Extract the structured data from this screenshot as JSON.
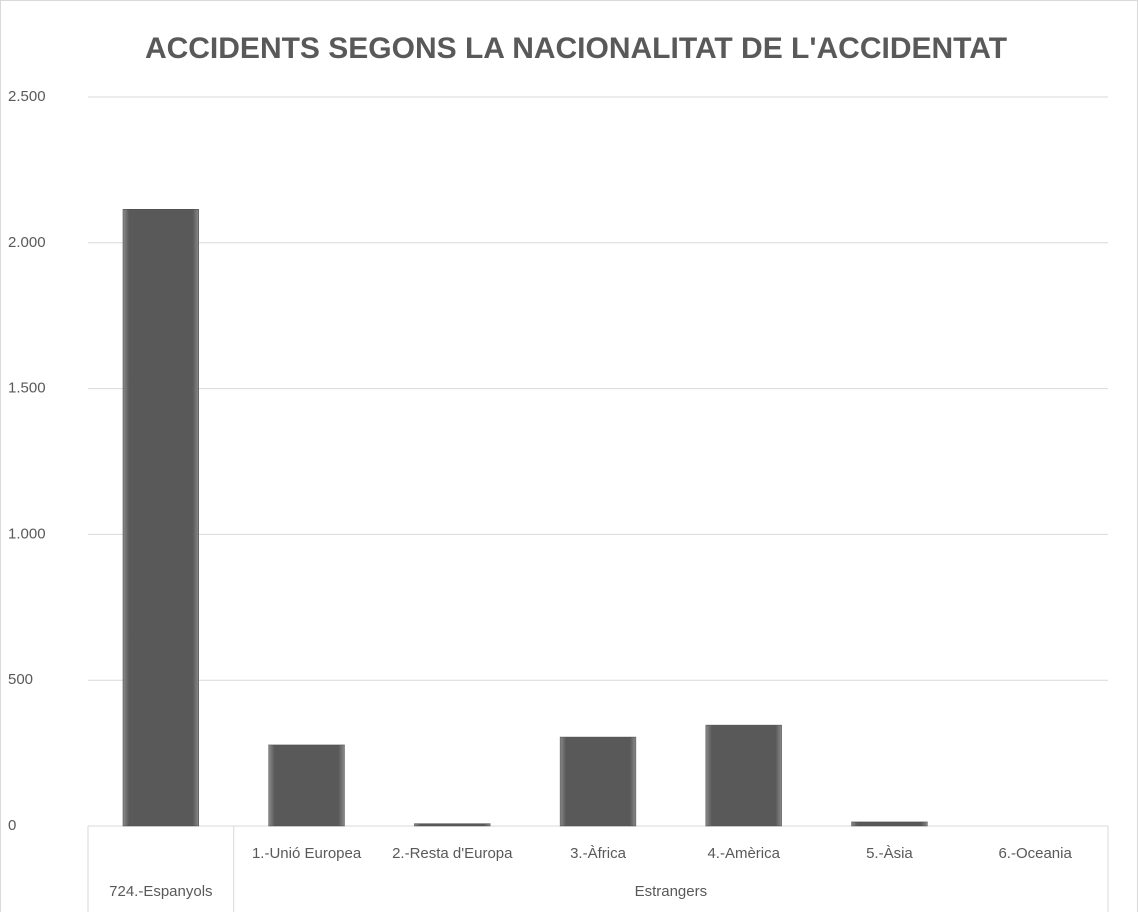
{
  "chart_data": {
    "type": "bar",
    "title": "ACCIDENTS SEGONS LA NACIONALITAT DE L'ACCIDENTAT",
    "categories": [
      null,
      "1.-Unió Europea",
      "2.-Resta d'Europa",
      "3.-Àfrica",
      "4.-Amèrica",
      "5.-Àsia",
      "6.-Oceania"
    ],
    "groups": [
      {
        "label": "724.-Espanyols",
        "count": 1
      },
      {
        "label": "Estrangers",
        "count": 6
      }
    ],
    "values": [
      2115,
      278,
      8,
      305,
      346,
      14,
      0
    ],
    "color": "#595959",
    "ylim": [
      0,
      2500
    ],
    "yticks": [
      0,
      500,
      {
        "value": 1000,
        "label": "1.000"
      },
      {
        "value": 1500,
        "label": "1.500"
      },
      {
        "value": 2000,
        "label": "2.000"
      },
      {
        "value": 2500,
        "label": "2.500"
      }
    ],
    "grid": true
  }
}
